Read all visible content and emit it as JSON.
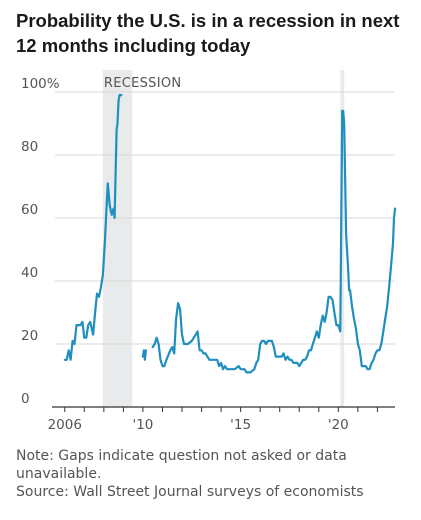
{
  "title": "Probability the U.S. is in a recession in next 12 months including today",
  "note": "Note: Gaps indicate question not asked or data unavailable.",
  "source": "Source: Wall Street Journal surveys of economists",
  "colors": {
    "line": "#1f8fbf",
    "recession": "#e8eaec",
    "grid": "#d9d9d9",
    "axis": "#333333"
  },
  "chart_data": {
    "type": "line",
    "title": "Probability the U.S. is in a recession in next 12 months including today",
    "xlabel": "",
    "ylabel": "",
    "ylim": [
      0,
      100
    ],
    "xlim": [
      2005.5,
      2022.9
    ],
    "y_ticks": [
      0,
      20,
      40,
      60,
      80,
      100
    ],
    "y_tick_labels": [
      "0",
      "20",
      "40",
      "60",
      "80",
      "100%"
    ],
    "x_ticks": [
      2006,
      2010,
      2015,
      2020
    ],
    "x_tick_labels": [
      "2006",
      "'10",
      "'15",
      "'20"
    ],
    "grid": true,
    "recession_bands": [
      {
        "label": "RECESSION",
        "start": 2007.95,
        "end": 2009.45
      },
      {
        "label": "",
        "start": 2020.1,
        "end": 2020.3
      }
    ],
    "series": [
      {
        "segments": [
          [
            [
              2006.0,
              15
            ],
            [
              2006.1,
              15
            ],
            [
              2006.2,
              18
            ],
            [
              2006.3,
              15
            ],
            [
              2006.4,
              21
            ],
            [
              2006.5,
              20
            ],
            [
              2006.6,
              26
            ],
            [
              2006.7,
              26
            ],
            [
              2006.8,
              26
            ],
            [
              2006.9,
              27
            ],
            [
              2007.0,
              22
            ],
            [
              2007.1,
              22
            ],
            [
              2007.2,
              26
            ],
            [
              2007.3,
              27
            ],
            [
              2007.45,
              23
            ],
            [
              2007.55,
              30
            ],
            [
              2007.65,
              36
            ],
            [
              2007.75,
              35
            ],
            [
              2007.85,
              38
            ],
            [
              2007.95,
              42
            ],
            [
              2008.05,
              52
            ],
            [
              2008.15,
              65
            ],
            [
              2008.2,
              71
            ],
            [
              2008.3,
              64
            ],
            [
              2008.4,
              61
            ],
            [
              2008.5,
              63
            ],
            [
              2008.55,
              60
            ],
            [
              2008.65,
              88
            ],
            [
              2008.7,
              90
            ],
            [
              2008.75,
              97
            ],
            [
              2008.8,
              99
            ],
            [
              2008.9,
              99
            ]
          ],
          [
            [
              2010.0,
              16
            ],
            [
              2010.05,
              18
            ],
            [
              2010.1,
              15
            ],
            [
              2010.15,
              18
            ]
          ],
          [
            [
              2010.5,
              19
            ],
            [
              2010.6,
              20
            ],
            [
              2010.7,
              22
            ],
            [
              2010.8,
              20
            ],
            [
              2010.9,
              15
            ],
            [
              2011.0,
              13
            ],
            [
              2011.1,
              13
            ],
            [
              2011.2,
              15
            ],
            [
              2011.4,
              18
            ],
            [
              2011.5,
              19
            ],
            [
              2011.6,
              17
            ],
            [
              2011.7,
              28
            ],
            [
              2011.8,
              33
            ],
            [
              2011.9,
              31
            ],
            [
              2012.0,
              23
            ],
            [
              2012.1,
              20
            ],
            [
              2012.3,
              20
            ],
            [
              2012.5,
              21
            ],
            [
              2012.7,
              23
            ],
            [
              2012.8,
              24
            ],
            [
              2012.9,
              18
            ],
            [
              2013.0,
              18
            ],
            [
              2013.1,
              17
            ],
            [
              2013.2,
              17
            ],
            [
              2013.3,
              16
            ],
            [
              2013.4,
              15
            ],
            [
              2013.5,
              15
            ],
            [
              2013.7,
              15
            ],
            [
              2013.8,
              15
            ],
            [
              2013.9,
              13
            ],
            [
              2014.0,
              14
            ],
            [
              2014.1,
              12
            ],
            [
              2014.2,
              13
            ],
            [
              2014.3,
              12
            ],
            [
              2014.5,
              12
            ],
            [
              2014.7,
              12
            ],
            [
              2014.9,
              13
            ],
            [
              2015.0,
              12
            ],
            [
              2015.1,
              12
            ],
            [
              2015.2,
              12
            ],
            [
              2015.3,
              11
            ],
            [
              2015.5,
              11
            ],
            [
              2015.7,
              12
            ],
            [
              2015.8,
              14
            ],
            [
              2015.9,
              15
            ],
            [
              2016.0,
              20
            ],
            [
              2016.1,
              21
            ],
            [
              2016.2,
              21
            ],
            [
              2016.3,
              20
            ],
            [
              2016.4,
              21
            ],
            [
              2016.5,
              21
            ],
            [
              2016.6,
              21
            ],
            [
              2016.7,
              19
            ],
            [
              2016.8,
              16
            ],
            [
              2016.9,
              16
            ],
            [
              2017.0,
              16
            ],
            [
              2017.1,
              16
            ],
            [
              2017.2,
              17
            ],
            [
              2017.3,
              15
            ],
            [
              2017.4,
              16
            ],
            [
              2017.5,
              15
            ],
            [
              2017.6,
              15
            ],
            [
              2017.7,
              14
            ],
            [
              2017.8,
              14
            ],
            [
              2017.9,
              14
            ],
            [
              2018.0,
              13
            ],
            [
              2018.1,
              14
            ],
            [
              2018.2,
              15
            ],
            [
              2018.3,
              15
            ],
            [
              2018.4,
              16
            ],
            [
              2018.5,
              18
            ],
            [
              2018.6,
              18
            ],
            [
              2018.7,
              20
            ],
            [
              2018.8,
              22
            ],
            [
              2018.9,
              24
            ],
            [
              2019.0,
              22
            ],
            [
              2019.1,
              26
            ],
            [
              2019.2,
              29
            ],
            [
              2019.3,
              27
            ],
            [
              2019.4,
              30
            ],
            [
              2019.5,
              35
            ],
            [
              2019.6,
              35
            ],
            [
              2019.7,
              34
            ],
            [
              2019.8,
              30
            ],
            [
              2019.9,
              26
            ],
            [
              2020.0,
              26
            ],
            [
              2020.1,
              24
            ],
            [
              2020.2,
              94
            ],
            [
              2020.25,
              94
            ],
            [
              2020.3,
              90
            ],
            [
              2020.4,
              55
            ],
            [
              2020.5,
              44
            ],
            [
              2020.55,
              37
            ],
            [
              2020.6,
              37
            ],
            [
              2020.7,
              32
            ],
            [
              2020.8,
              28
            ],
            [
              2020.9,
              25
            ],
            [
              2021.0,
              20
            ],
            [
              2021.1,
              18
            ],
            [
              2021.2,
              13
            ],
            [
              2021.3,
              13
            ],
            [
              2021.4,
              13
            ],
            [
              2021.5,
              12
            ],
            [
              2021.6,
              12
            ],
            [
              2021.7,
              14
            ],
            [
              2021.8,
              15
            ],
            [
              2021.9,
              17
            ],
            [
              2022.0,
              18
            ],
            [
              2022.1,
              18
            ],
            [
              2022.2,
              20
            ],
            [
              2022.3,
              24
            ],
            [
              2022.4,
              28
            ],
            [
              2022.5,
              32
            ],
            [
              2022.6,
              38
            ],
            [
              2022.7,
              45
            ],
            [
              2022.8,
              52
            ],
            [
              2022.85,
              60
            ],
            [
              2022.9,
              63
            ]
          ]
        ]
      }
    ]
  }
}
